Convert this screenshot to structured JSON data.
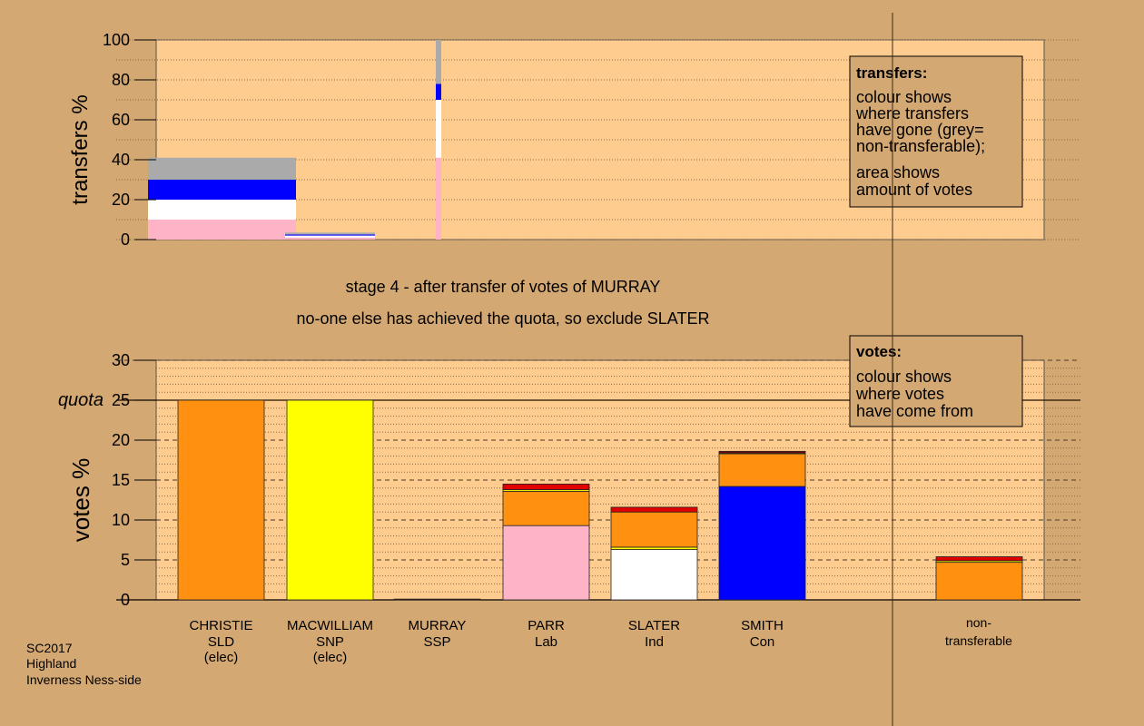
{
  "colors": {
    "background": "#d4a873",
    "plot_bg": "#ffcc8f",
    "SLD": "#ff9010",
    "SNP": "#ffff00",
    "Lab": "#ffb3c6",
    "Ind": "#ffffff",
    "Con": "#0000ff",
    "SSP": "#e00000",
    "non_transferable": "#aaaaaa",
    "dark_red": "#8b0000"
  },
  "stage_text": {
    "line1": "stage 4 - after transfer of votes of MURRAY",
    "line2": "no-one else has achieved the quota, so exclude SLATER"
  },
  "footer": {
    "line1": "SC2017",
    "line2": "Highland",
    "line3": "Inverness Ness-side"
  },
  "chart_data": [
    {
      "type": "bar",
      "ylabel": "transfers %",
      "ylim": [
        0,
        100
      ],
      "yticks": [
        "0",
        "20",
        "40",
        "60",
        "80",
        "100"
      ],
      "legend": {
        "title": "transfers:",
        "lines": [
          "colour shows",
          "where transfers",
          "have gone (grey=",
          "non-transferable);"
        ],
        "lines2": [
          "area shows",
          "amount of votes"
        ],
        "placement": "top-right"
      },
      "bars": [
        {
          "segments": [
            {
              "party": "Lab",
              "value": 10
            },
            {
              "party": "Ind",
              "value": 10
            },
            {
              "party": "Con",
              "value": 10
            },
            {
              "party": "non_transferable",
              "value": 11
            }
          ]
        },
        {
          "segments": [
            {
              "party": "Lab",
              "value": 1
            },
            {
              "party": "Ind",
              "value": 1
            },
            {
              "party": "Con",
              "value": 0.5
            },
            {
              "party": "non_transferable",
              "value": 1
            }
          ]
        },
        {
          "segments": [
            {
              "party": "Lab",
              "value": 41
            },
            {
              "party": "Ind",
              "value": 29
            },
            {
              "party": "Con",
              "value": 8
            },
            {
              "party": "non_transferable",
              "value": 22
            }
          ]
        }
      ]
    },
    {
      "type": "bar",
      "ylabel": "votes %",
      "ylim": [
        0,
        30
      ],
      "yticks": [
        "0",
        "5",
        "10",
        "15",
        "20",
        "25",
        "30"
      ],
      "quota": 25,
      "quota_label": "quota",
      "legend": {
        "title": "votes:",
        "lines": [
          "colour shows",
          "where votes",
          "have come from"
        ],
        "placement": "top-right"
      },
      "candidates": [
        {
          "name": "CHRISTIE",
          "party": "SLD",
          "status": "(elec)",
          "segments": [
            {
              "party": "SLD",
              "value": 25
            }
          ]
        },
        {
          "name": "MACWILLIAM",
          "party": "SNP",
          "status": "(elec)",
          "segments": [
            {
              "party": "SNP",
              "value": 25
            }
          ]
        },
        {
          "name": "MURRAY",
          "party": "SSP",
          "status": "",
          "segments": [
            {
              "party": "SSP",
              "value": 0.1
            }
          ]
        },
        {
          "name": "PARR",
          "party": "Lab",
          "status": "",
          "segments": [
            {
              "party": "Lab",
              "value": 9.3
            },
            {
              "party": "SLD",
              "value": 4.3
            },
            {
              "party": "SNP",
              "value": 0.2
            },
            {
              "party": "SSP",
              "value": 0.7
            }
          ]
        },
        {
          "name": "SLATER",
          "party": "Ind",
          "status": "",
          "segments": [
            {
              "party": "Ind",
              "value": 6.3
            },
            {
              "party": "SNP",
              "value": 0.3
            },
            {
              "party": "SLD",
              "value": 4.4
            },
            {
              "party": "SSP",
              "value": 0.6
            }
          ]
        },
        {
          "name": "SMITH",
          "party": "Con",
          "status": "",
          "segments": [
            {
              "party": "Con",
              "value": 14.2
            },
            {
              "party": "SLD",
              "value": 4.1
            },
            {
              "party": "SNP",
              "value": 0.1
            },
            {
              "party": "dark_red",
              "value": 0.2
            }
          ]
        }
      ],
      "non_transferable": {
        "label1": "non-",
        "label2": "transferable",
        "segments": [
          {
            "party": "SLD",
            "value": 4.7
          },
          {
            "party": "SNP",
            "value": 0.2
          },
          {
            "party": "SSP",
            "value": 0.5
          }
        ]
      }
    }
  ]
}
